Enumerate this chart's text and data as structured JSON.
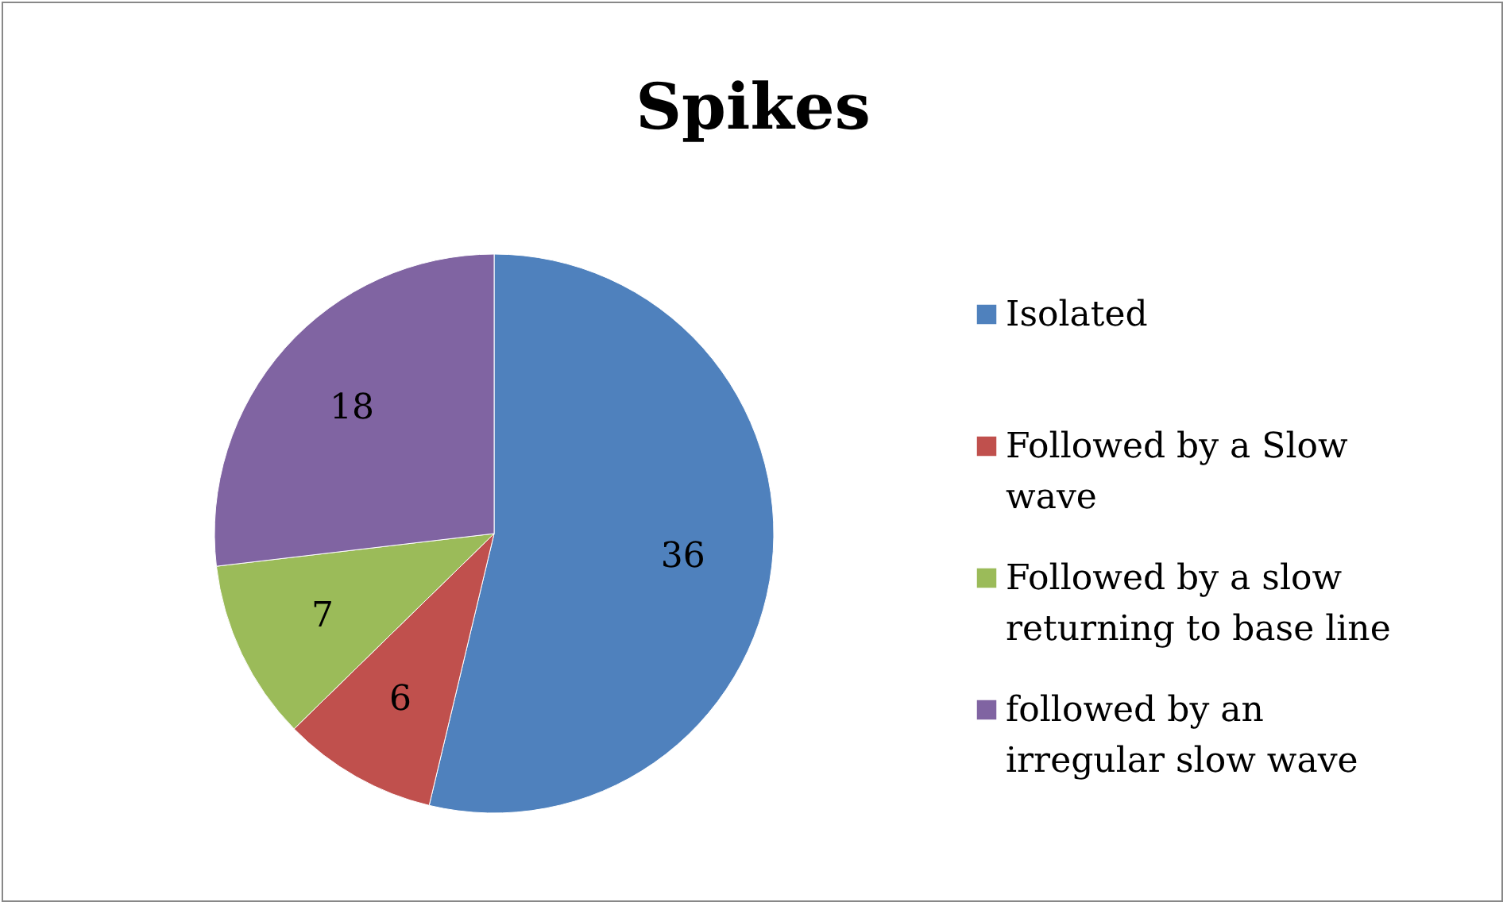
{
  "chart_data": {
    "type": "pie",
    "title": "Spikes",
    "categories": [
      "Isolated",
      "Followed by a Slow wave",
      "Followed by a slow returning to base line",
      "followed by an irregular slow wave"
    ],
    "values": [
      36,
      6,
      7,
      18
    ],
    "colors": [
      "#4f81bd",
      "#c0504d",
      "#9bbb59",
      "#8064a2"
    ],
    "data_labels": true,
    "legend": "right"
  }
}
